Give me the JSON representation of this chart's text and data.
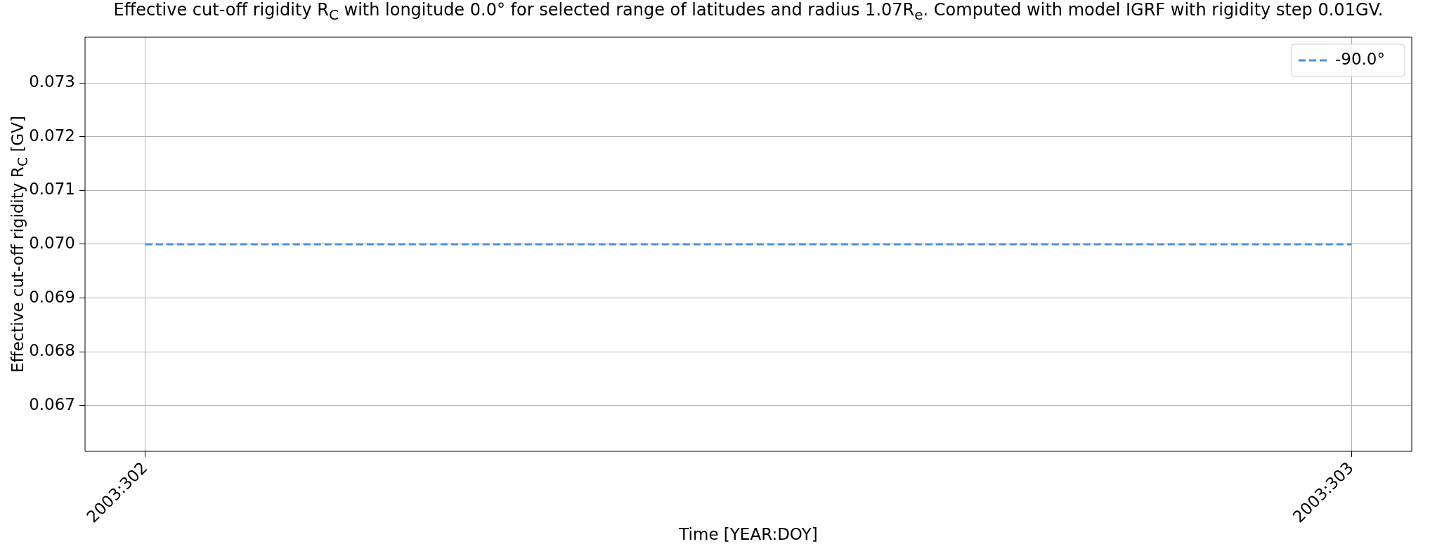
{
  "chart_data": {
    "type": "line",
    "title": "Effective cut-off rigidity R$_{C}$ with longitude 0.0° for selected range of latitudes and radius 1.07R$_{e}$. Computed with model IGRF with rigidity step 0.01GV.",
    "xlabel": "Time [YEAR:DOY]",
    "ylabel": "Effective cut-off rigidity R$_{C}$ [GV]",
    "x": [
      "2003-10-29",
      "2003-10-30"
    ],
    "series": [
      {
        "name": "-90.0°",
        "color": "#4a90d9",
        "values": [
          0.07,
          0.07
        ]
      }
    ],
    "xlim": [
      "2003-10-28T22:48",
      "2003-10-30T01:12"
    ],
    "xticks": [
      {
        "value": "2003-10-29",
        "label": "2003:302"
      },
      {
        "value": "2003-10-30",
        "label": "2003:303"
      }
    ],
    "ylim": [
      0.06615,
      0.07385
    ],
    "yticks": [
      0.067,
      0.068,
      0.069,
      {
        "value": 0.07,
        "label": "0.070"
      },
      0.071,
      0.072,
      0.073
    ],
    "grid": true,
    "legend": "top right",
    "line_style": "dashed",
    "marker": "none"
  }
}
